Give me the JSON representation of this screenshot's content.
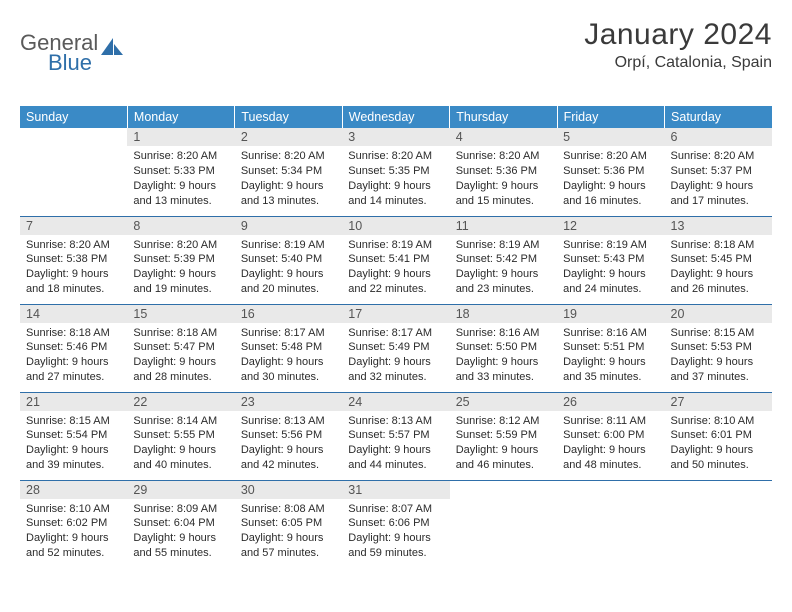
{
  "logo": {
    "general": "General",
    "blue": "Blue"
  },
  "title": "January 2024",
  "location": "Orpí, Catalonia, Spain",
  "colors": {
    "header_bg": "#3a8ac6",
    "rule": "#2f6fa9",
    "daynum_bg": "#e9e9e9",
    "text": "#2b2b2b",
    "title_text": "#3a3a3a"
  },
  "day_names": [
    "Sunday",
    "Monday",
    "Tuesday",
    "Wednesday",
    "Thursday",
    "Friday",
    "Saturday"
  ],
  "weeks": [
    [
      {
        "n": "",
        "sunrise": "",
        "sunset": "",
        "daylight": ""
      },
      {
        "n": "1",
        "sunrise": "Sunrise: 8:20 AM",
        "sunset": "Sunset: 5:33 PM",
        "daylight": "Daylight: 9 hours and 13 minutes."
      },
      {
        "n": "2",
        "sunrise": "Sunrise: 8:20 AM",
        "sunset": "Sunset: 5:34 PM",
        "daylight": "Daylight: 9 hours and 13 minutes."
      },
      {
        "n": "3",
        "sunrise": "Sunrise: 8:20 AM",
        "sunset": "Sunset: 5:35 PM",
        "daylight": "Daylight: 9 hours and 14 minutes."
      },
      {
        "n": "4",
        "sunrise": "Sunrise: 8:20 AM",
        "sunset": "Sunset: 5:36 PM",
        "daylight": "Daylight: 9 hours and 15 minutes."
      },
      {
        "n": "5",
        "sunrise": "Sunrise: 8:20 AM",
        "sunset": "Sunset: 5:36 PM",
        "daylight": "Daylight: 9 hours and 16 minutes."
      },
      {
        "n": "6",
        "sunrise": "Sunrise: 8:20 AM",
        "sunset": "Sunset: 5:37 PM",
        "daylight": "Daylight: 9 hours and 17 minutes."
      }
    ],
    [
      {
        "n": "7",
        "sunrise": "Sunrise: 8:20 AM",
        "sunset": "Sunset: 5:38 PM",
        "daylight": "Daylight: 9 hours and 18 minutes."
      },
      {
        "n": "8",
        "sunrise": "Sunrise: 8:20 AM",
        "sunset": "Sunset: 5:39 PM",
        "daylight": "Daylight: 9 hours and 19 minutes."
      },
      {
        "n": "9",
        "sunrise": "Sunrise: 8:19 AM",
        "sunset": "Sunset: 5:40 PM",
        "daylight": "Daylight: 9 hours and 20 minutes."
      },
      {
        "n": "10",
        "sunrise": "Sunrise: 8:19 AM",
        "sunset": "Sunset: 5:41 PM",
        "daylight": "Daylight: 9 hours and 22 minutes."
      },
      {
        "n": "11",
        "sunrise": "Sunrise: 8:19 AM",
        "sunset": "Sunset: 5:42 PM",
        "daylight": "Daylight: 9 hours and 23 minutes."
      },
      {
        "n": "12",
        "sunrise": "Sunrise: 8:19 AM",
        "sunset": "Sunset: 5:43 PM",
        "daylight": "Daylight: 9 hours and 24 minutes."
      },
      {
        "n": "13",
        "sunrise": "Sunrise: 8:18 AM",
        "sunset": "Sunset: 5:45 PM",
        "daylight": "Daylight: 9 hours and 26 minutes."
      }
    ],
    [
      {
        "n": "14",
        "sunrise": "Sunrise: 8:18 AM",
        "sunset": "Sunset: 5:46 PM",
        "daylight": "Daylight: 9 hours and 27 minutes."
      },
      {
        "n": "15",
        "sunrise": "Sunrise: 8:18 AM",
        "sunset": "Sunset: 5:47 PM",
        "daylight": "Daylight: 9 hours and 28 minutes."
      },
      {
        "n": "16",
        "sunrise": "Sunrise: 8:17 AM",
        "sunset": "Sunset: 5:48 PM",
        "daylight": "Daylight: 9 hours and 30 minutes."
      },
      {
        "n": "17",
        "sunrise": "Sunrise: 8:17 AM",
        "sunset": "Sunset: 5:49 PM",
        "daylight": "Daylight: 9 hours and 32 minutes."
      },
      {
        "n": "18",
        "sunrise": "Sunrise: 8:16 AM",
        "sunset": "Sunset: 5:50 PM",
        "daylight": "Daylight: 9 hours and 33 minutes."
      },
      {
        "n": "19",
        "sunrise": "Sunrise: 8:16 AM",
        "sunset": "Sunset: 5:51 PM",
        "daylight": "Daylight: 9 hours and 35 minutes."
      },
      {
        "n": "20",
        "sunrise": "Sunrise: 8:15 AM",
        "sunset": "Sunset: 5:53 PM",
        "daylight": "Daylight: 9 hours and 37 minutes."
      }
    ],
    [
      {
        "n": "21",
        "sunrise": "Sunrise: 8:15 AM",
        "sunset": "Sunset: 5:54 PM",
        "daylight": "Daylight: 9 hours and 39 minutes."
      },
      {
        "n": "22",
        "sunrise": "Sunrise: 8:14 AM",
        "sunset": "Sunset: 5:55 PM",
        "daylight": "Daylight: 9 hours and 40 minutes."
      },
      {
        "n": "23",
        "sunrise": "Sunrise: 8:13 AM",
        "sunset": "Sunset: 5:56 PM",
        "daylight": "Daylight: 9 hours and 42 minutes."
      },
      {
        "n": "24",
        "sunrise": "Sunrise: 8:13 AM",
        "sunset": "Sunset: 5:57 PM",
        "daylight": "Daylight: 9 hours and 44 minutes."
      },
      {
        "n": "25",
        "sunrise": "Sunrise: 8:12 AM",
        "sunset": "Sunset: 5:59 PM",
        "daylight": "Daylight: 9 hours and 46 minutes."
      },
      {
        "n": "26",
        "sunrise": "Sunrise: 8:11 AM",
        "sunset": "Sunset: 6:00 PM",
        "daylight": "Daylight: 9 hours and 48 minutes."
      },
      {
        "n": "27",
        "sunrise": "Sunrise: 8:10 AM",
        "sunset": "Sunset: 6:01 PM",
        "daylight": "Daylight: 9 hours and 50 minutes."
      }
    ],
    [
      {
        "n": "28",
        "sunrise": "Sunrise: 8:10 AM",
        "sunset": "Sunset: 6:02 PM",
        "daylight": "Daylight: 9 hours and 52 minutes."
      },
      {
        "n": "29",
        "sunrise": "Sunrise: 8:09 AM",
        "sunset": "Sunset: 6:04 PM",
        "daylight": "Daylight: 9 hours and 55 minutes."
      },
      {
        "n": "30",
        "sunrise": "Sunrise: 8:08 AM",
        "sunset": "Sunset: 6:05 PM",
        "daylight": "Daylight: 9 hours and 57 minutes."
      },
      {
        "n": "31",
        "sunrise": "Sunrise: 8:07 AM",
        "sunset": "Sunset: 6:06 PM",
        "daylight": "Daylight: 9 hours and 59 minutes."
      },
      {
        "n": "",
        "sunrise": "",
        "sunset": "",
        "daylight": ""
      },
      {
        "n": "",
        "sunrise": "",
        "sunset": "",
        "daylight": ""
      },
      {
        "n": "",
        "sunrise": "",
        "sunset": "",
        "daylight": ""
      }
    ]
  ]
}
